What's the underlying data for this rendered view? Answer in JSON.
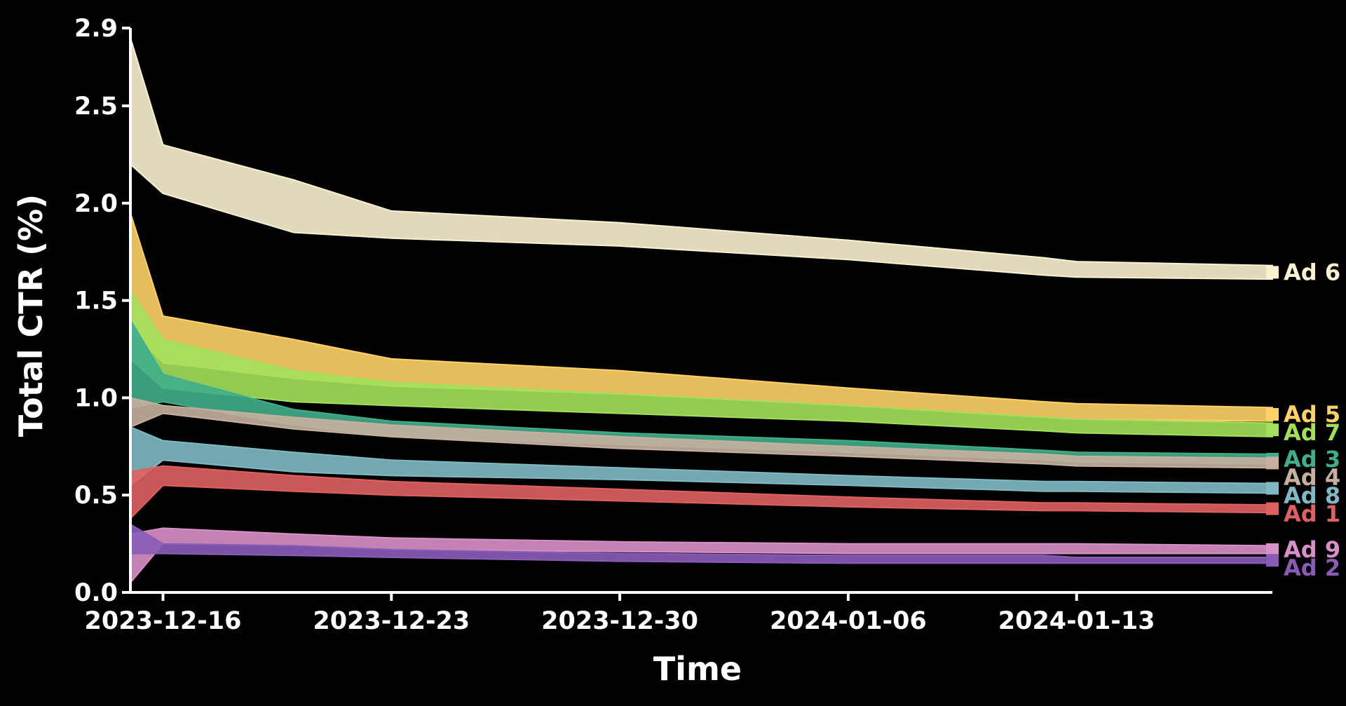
{
  "chart_data": {
    "type": "area",
    "title": "",
    "xlabel": "Time",
    "ylabel": "Total CTR (%)",
    "ylim": [
      0.0,
      2.9
    ],
    "yticks": [
      0.0,
      0.5,
      1.0,
      1.5,
      2.0,
      2.5,
      2.9
    ],
    "ytick_labels": [
      "0.0",
      "0.5",
      "1.0",
      "1.5",
      "2.0",
      "2.5",
      "2.9"
    ],
    "xlim": [
      "2023-12-15",
      "2024-01-19"
    ],
    "xticks": [
      "2023-12-16",
      "2023-12-23",
      "2023-12-30",
      "2024-01-06",
      "2024-01-13"
    ],
    "xtick_labels": [
      "2023-12-16",
      "2023-12-23",
      "2023-12-30",
      "2024-01-06",
      "2024-01-13"
    ],
    "x": [
      "2023-12-15",
      "2023-12-16",
      "2023-12-20",
      "2023-12-23",
      "2023-12-30",
      "2024-01-06",
      "2024-01-12",
      "2024-01-13",
      "2024-01-19"
    ],
    "grid": false,
    "legend": "none (series labelled at right end of lines)",
    "series": [
      {
        "name": "Ad 6",
        "color": "#f8f1d0",
        "lower": [
          2.2,
          2.05,
          1.85,
          1.82,
          1.78,
          1.71,
          1.63,
          1.62,
          1.61
        ],
        "upper": [
          2.85,
          2.3,
          2.12,
          1.96,
          1.9,
          1.81,
          1.72,
          1.7,
          1.68
        ]
      },
      {
        "name": "Ad 5",
        "color": "#ffd166",
        "lower": [
          1.35,
          1.18,
          1.1,
          1.06,
          1.02,
          0.96,
          0.9,
          0.89,
          0.88
        ],
        "upper": [
          1.95,
          1.42,
          1.3,
          1.2,
          1.14,
          1.05,
          0.98,
          0.97,
          0.95
        ]
      },
      {
        "name": "Ad 7",
        "color": "#a3e05a",
        "lower": [
          1.2,
          1.05,
          0.98,
          0.96,
          0.92,
          0.88,
          0.83,
          0.82,
          0.8
        ],
        "upper": [
          1.55,
          1.3,
          1.14,
          1.08,
          1.02,
          0.96,
          0.9,
          0.89,
          0.87
        ]
      },
      {
        "name": "Ad 3",
        "color": "#3fae8c",
        "lower": [
          0.95,
          0.98,
          0.86,
          0.8,
          0.76,
          0.72,
          0.68,
          0.67,
          0.66
        ],
        "upper": [
          1.4,
          1.12,
          0.94,
          0.88,
          0.82,
          0.78,
          0.73,
          0.72,
          0.71
        ]
      },
      {
        "name": "Ad 4",
        "color": "#c7b09d",
        "lower": [
          0.85,
          0.92,
          0.84,
          0.8,
          0.74,
          0.7,
          0.66,
          0.65,
          0.64
        ],
        "upper": [
          1.0,
          0.96,
          0.9,
          0.86,
          0.8,
          0.75,
          0.71,
          0.7,
          0.69
        ]
      },
      {
        "name": "Ad 8",
        "color": "#7fbac4",
        "lower": [
          0.55,
          0.68,
          0.62,
          0.6,
          0.58,
          0.55,
          0.52,
          0.52,
          0.51
        ],
        "upper": [
          0.85,
          0.78,
          0.72,
          0.68,
          0.64,
          0.6,
          0.57,
          0.57,
          0.56
        ]
      },
      {
        "name": "Ad 1",
        "color": "#e06060",
        "lower": [
          0.38,
          0.55,
          0.52,
          0.5,
          0.47,
          0.44,
          0.42,
          0.42,
          0.41
        ],
        "upper": [
          0.62,
          0.65,
          0.6,
          0.57,
          0.53,
          0.49,
          0.46,
          0.46,
          0.45
        ]
      },
      {
        "name": "Ad 9",
        "color": "#d98fc8",
        "lower": [
          0.05,
          0.25,
          0.24,
          0.22,
          0.21,
          0.2,
          0.2,
          0.2,
          0.2
        ],
        "upper": [
          0.3,
          0.33,
          0.3,
          0.28,
          0.26,
          0.25,
          0.25,
          0.25,
          0.24
        ]
      },
      {
        "name": "Ad 2",
        "color": "#8a5cb8",
        "lower": [
          0.2,
          0.2,
          0.19,
          0.18,
          0.16,
          0.15,
          0.15,
          0.15,
          0.15
        ],
        "upper": [
          0.35,
          0.25,
          0.24,
          0.22,
          0.2,
          0.19,
          0.19,
          0.18,
          0.18
        ]
      }
    ]
  }
}
